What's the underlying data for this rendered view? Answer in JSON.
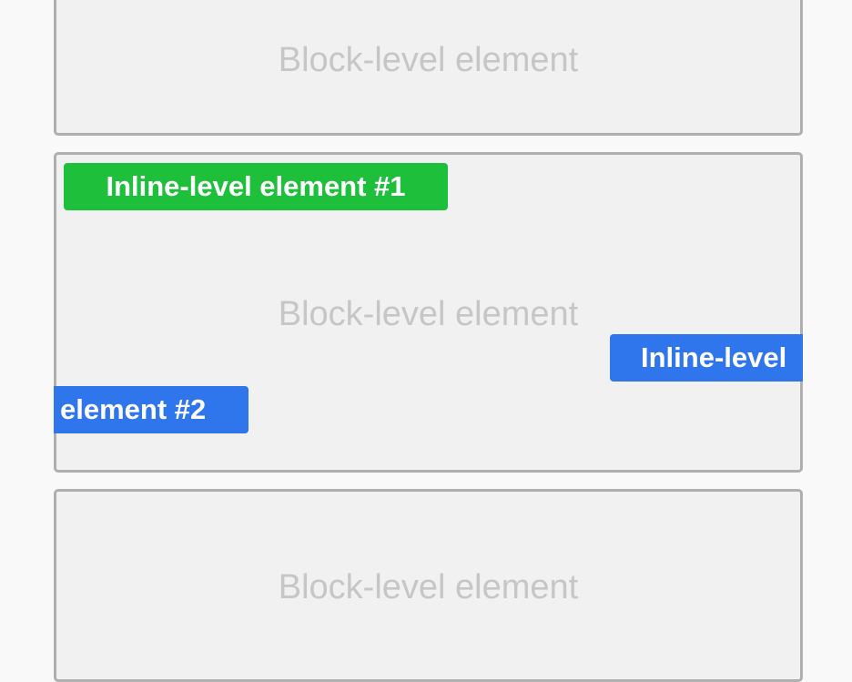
{
  "blocks": [
    {
      "label": "Block-level element"
    },
    {
      "label": "Block-level element"
    },
    {
      "label": "Block-level element"
    }
  ],
  "inline_elements": [
    {
      "text": "Inline-level element #1",
      "color": "#1ec03b"
    },
    {
      "text_part1": "Inline-level",
      "text_part2": "element #2",
      "color": "#2f75eb"
    }
  ],
  "colors": {
    "page_background": "#f9f9f9",
    "block_background": "#f1f1f1",
    "block_border": "#afafaf",
    "block_label": "#c6c6c6",
    "inline_text": "#ffffff"
  }
}
